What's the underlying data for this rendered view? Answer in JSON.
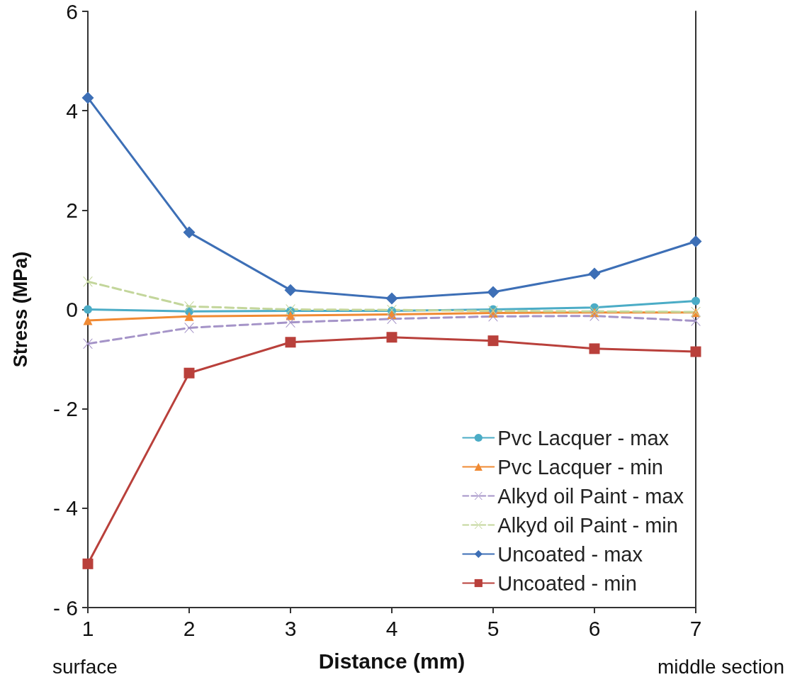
{
  "chart_data": {
    "type": "line",
    "xlabel": "Distance (mm)",
    "ylabel": "Stress (MPa)",
    "x": [
      1,
      2,
      3,
      4,
      5,
      6,
      7
    ],
    "xlim": [
      1,
      7
    ],
    "xticks": [
      1,
      2,
      3,
      4,
      5,
      6,
      7
    ],
    "ylim": [
      -6,
      6
    ],
    "yticks": [
      {
        "value": -6,
        "label": "- 6"
      },
      {
        "value": -4,
        "label": "- 4"
      },
      {
        "value": -2,
        "label": "- 2"
      },
      0,
      2,
      4,
      6
    ],
    "annotations": [
      "surface",
      "middle section"
    ],
    "grid": false,
    "legend": "bottom right",
    "series": [
      {
        "name": "Pvc Lacquer - max",
        "color": "#4bacc6",
        "marker": "circle",
        "line_style": "solid",
        "values": [
          0,
          -0.04,
          -0.03,
          -0.03,
          0,
          0.04,
          0.17
        ]
      },
      {
        "name": "Pvc Lacquer - min",
        "color": "#f08a33",
        "marker": "triangle",
        "line_style": "solid",
        "values": [
          -0.22,
          -0.14,
          -0.12,
          -0.1,
          -0.07,
          -0.06,
          -0.06
        ]
      },
      {
        "name": "Alkyd oil Paint - max",
        "color": "#a594c8",
        "marker": "cross",
        "line_style": "dashed",
        "values": [
          -0.69,
          -0.37,
          -0.26,
          -0.19,
          -0.14,
          -0.13,
          -0.23
        ]
      },
      {
        "name": "Alkyd oil Paint - min",
        "color": "#c3d69b",
        "marker": "cross",
        "line_style": "dashed",
        "values": [
          0.56,
          0.06,
          0,
          -0.01,
          -0.03,
          -0.04,
          -0.05
        ]
      },
      {
        "name": "Uncoated - max",
        "color": "#3d6fb6",
        "marker": "diamond",
        "line_style": "solid",
        "values": [
          4.26,
          1.55,
          0.39,
          0.22,
          0.35,
          0.72,
          1.37
        ]
      },
      {
        "name": "Uncoated - min",
        "color": "#b9403b",
        "marker": "square",
        "line_style": "solid",
        "values": [
          -5.12,
          -1.28,
          -0.66,
          -0.56,
          -0.63,
          -0.79,
          -0.85
        ]
      }
    ]
  }
}
